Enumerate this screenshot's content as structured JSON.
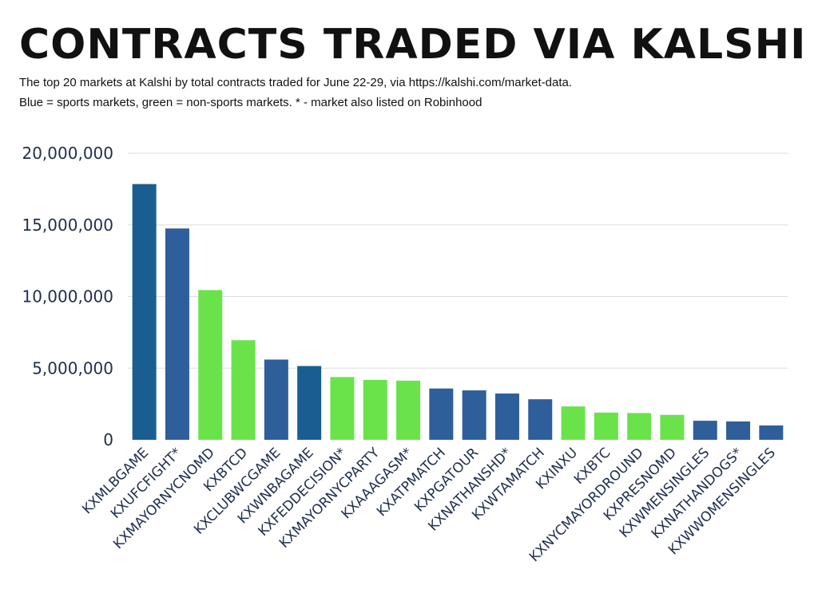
{
  "chart_data": {
    "type": "bar",
    "title": "CONTRACTS TRADED VIA KALSHI",
    "subtitle_lines": [
      "The top 20 markets at Kalshi by total contracts traded for June 22-29, via https://kalshi.com/market-data.",
      "Blue = sports markets, green = non-sports markets. * - market also listed on Robinhood"
    ],
    "xlabel": "",
    "ylabel": "",
    "ylim": [
      0,
      20000000
    ],
    "yticks": [
      {
        "value": 0,
        "label": "0"
      },
      {
        "value": 5000000,
        "label": "5,000,000"
      },
      {
        "value": 10000000,
        "label": "10,000,000"
      },
      {
        "value": 15000000,
        "label": "15,000,000"
      },
      {
        "value": 20000000,
        "label": "20,000,000"
      }
    ],
    "grid": true,
    "categories": [
      "KXMLBGAME",
      "KXUFCFIGHT*",
      "KXMAYORNYCNOMD",
      "KXBTCD",
      "KXCLUBWCGAME",
      "KXWNBAGAME",
      "KXFEDDECISION*",
      "KXMAYORNYCPARTY",
      "KXAAAGASM*",
      "KXATPMATCH",
      "KXPGATOUR",
      "KXNATHANSHD*",
      "KXWTAMATCH",
      "KXINXU",
      "KXBTC",
      "KXNYCMAYORDROUND",
      "KXPRESNOMD",
      "KXWMENSINGLES",
      "KXNATHANDOGS*",
      "KXWWOMENSINGLES"
    ],
    "values": [
      17850000,
      14750000,
      10450000,
      6950000,
      5600000,
      5150000,
      4380000,
      4180000,
      4130000,
      3580000,
      3450000,
      3230000,
      2830000,
      2330000,
      1900000,
      1870000,
      1740000,
      1330000,
      1280000,
      1000000
    ],
    "bar_colors": [
      "#1a5e91",
      "#2f5f9a",
      "#6ae34a",
      "#6ae34a",
      "#2f5f9a",
      "#1a5e91",
      "#6ae34a",
      "#6ae34a",
      "#6ae34a",
      "#2f5f9a",
      "#2f5f9a",
      "#2f5f9a",
      "#2f5f9a",
      "#6ae34a",
      "#6ae34a",
      "#6ae34a",
      "#6ae34a",
      "#2f5f9a",
      "#2f5f9a",
      "#2f5f9a"
    ],
    "colors": {
      "sports": "#2f5f9a",
      "non_sports": "#6ae34a",
      "grid": "#dedede",
      "text": "#1f2d4d"
    }
  }
}
